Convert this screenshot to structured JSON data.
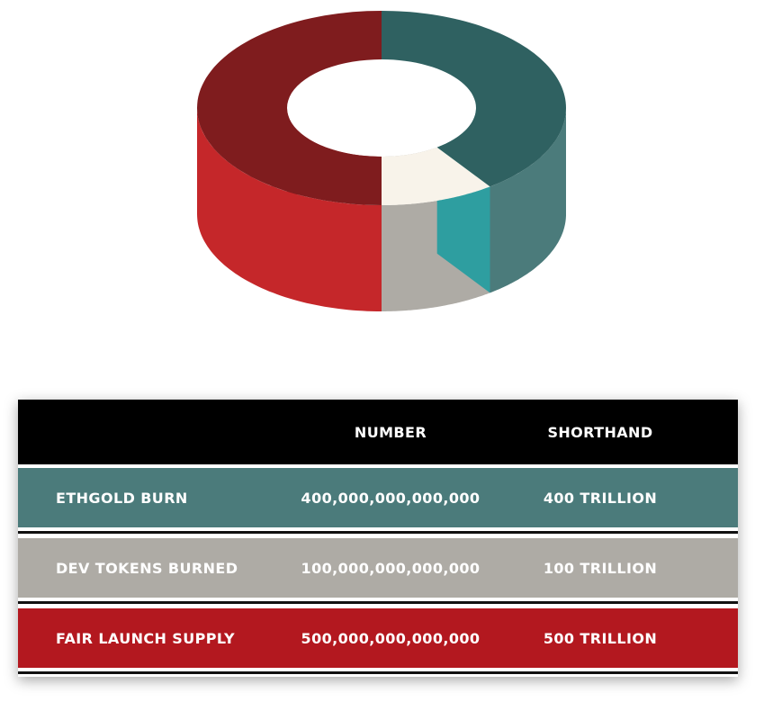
{
  "chart_data": {
    "type": "pie",
    "title": "",
    "categories": [
      "ETHGOLD BURN",
      "DEV TOKENS BURNED",
      "FAIR LAUNCH SUPPLY"
    ],
    "values": [
      400,
      100,
      500
    ],
    "unit": "TRILLION",
    "colors": {
      "ETHGOLD BURN": {
        "top": "#2f6161",
        "side": "#4b7b7b",
        "inner": "#2e9ea0",
        "hole": "#2a7b7c"
      },
      "DEV TOKENS BURNED": {
        "top": "#f8f3ea",
        "side": "#aeaba5"
      },
      "FAIR LAUNCH SUPPLY": {
        "top": "#7f1c1e",
        "side": "#c5272a",
        "inner": "#a31f22",
        "hole": "#a32024"
      }
    },
    "style": "3d-donut"
  },
  "table": {
    "headers": [
      "",
      "NUMBER",
      "SHORTHAND"
    ],
    "rows": [
      {
        "label": "ETHGOLD BURN",
        "number": "400,000,000,000,000",
        "shorthand": "400 TRILLION",
        "color": "#4b7b7b"
      },
      {
        "label": "DEV TOKENS BURNED",
        "number": "100,000,000,000,000",
        "shorthand": "100 TRILLION",
        "color": "#aeaba5"
      },
      {
        "label": "FAIR LAUNCH SUPPLY",
        "number": "500,000,000,000,000",
        "shorthand": "500 TRILLION",
        "color": "#b3181f"
      }
    ]
  }
}
